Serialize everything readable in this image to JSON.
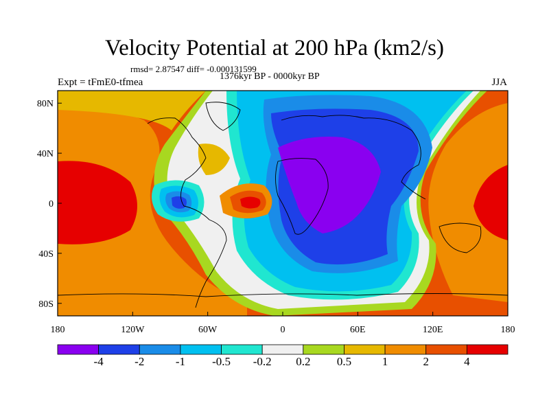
{
  "title": "Velocity Potential at 200 hPa (km2/s)",
  "stats": {
    "rmsd_label": "rmsd=",
    "rmsd": "2.87547",
    "diff_label": "diff=",
    "diff": "-0.000131599"
  },
  "period": "1376kyr BP - 0000kyr BP",
  "experiment": "Expt = tFmE0-tfmea",
  "season": "JJA",
  "axes": {
    "lat_labels": [
      "80N",
      "40N",
      "0",
      "40S",
      "80S"
    ],
    "lon_labels": [
      "180",
      "120W",
      "60W",
      "0",
      "60E",
      "120E",
      "180"
    ]
  },
  "colorbar": {
    "colors": [
      "#8a00f0",
      "#1e40e8",
      "#1a8ce8",
      "#00c0f0",
      "#20e6d0",
      "#f0f0f0",
      "#a8d820",
      "#e6b800",
      "#f08c00",
      "#e85000",
      "#e60000"
    ],
    "labels": [
      "-4",
      "-2",
      "-1",
      "-0.5",
      "-0.2",
      "0.2",
      "0.5",
      "1",
      "2",
      "4"
    ]
  }
}
